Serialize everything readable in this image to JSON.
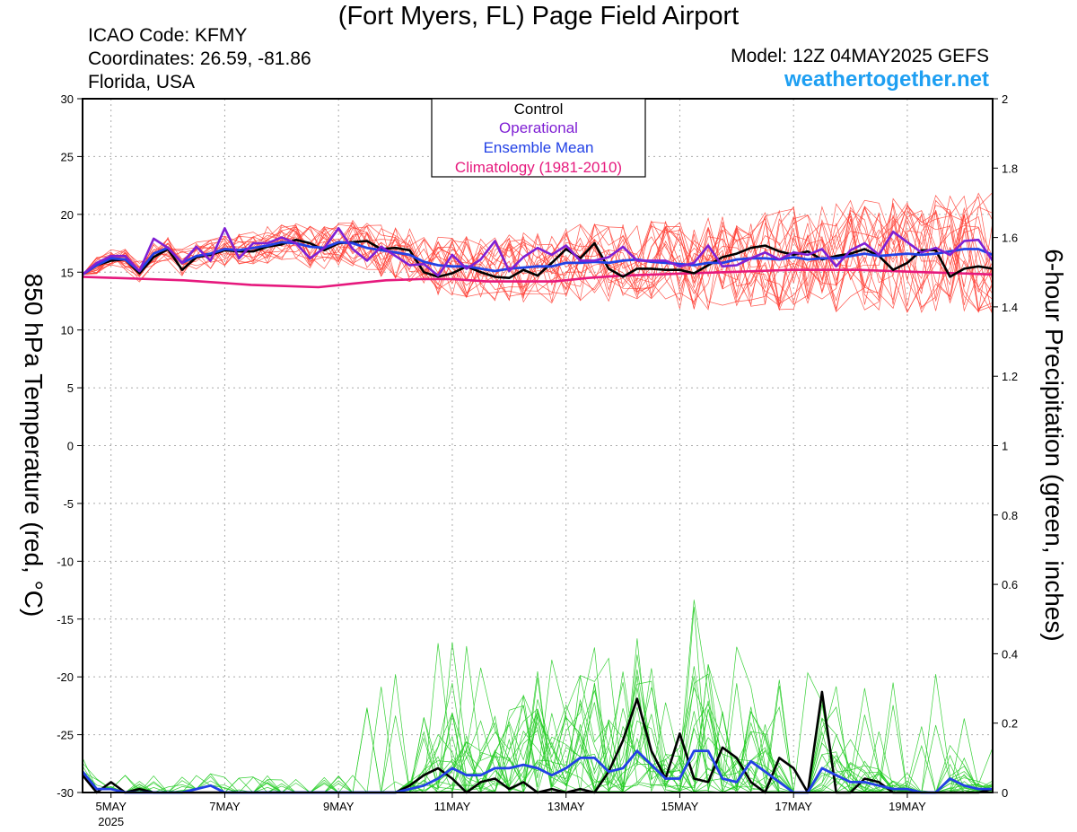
{
  "header": {
    "title": "(Fort Myers, FL) Page Field Airport",
    "icao": "ICAO Code: KFMY",
    "coordinates": "Coordinates: 26.59, -81.86",
    "region": "Florida, USA",
    "model": "Model: 12Z 04MAY2025 GEFS",
    "site": "weathertogether.net"
  },
  "chart_data": {
    "type": "line",
    "y_left_label": "850 hPa Temperature (red, °C)",
    "y_right_label": "6-hour Precipitation (green, inches)",
    "y_left_range": [
      -30,
      30
    ],
    "y_left_ticks": [
      "30",
      "25",
      "20",
      "15",
      "10",
      "5",
      "0",
      "-5",
      "-10",
      "-15",
      "-20",
      "-25",
      "-30"
    ],
    "y_right_range": [
      0,
      2
    ],
    "y_right_ticks": [
      "2",
      "1.8",
      "1.6",
      "1.4",
      "1.2",
      "1",
      "0.8",
      "0.6",
      "0.4",
      "0.2",
      "0"
    ],
    "x_start": "04MAY2025 12Z",
    "x_step_hours": 6,
    "x_ticks": [
      {
        "label": "5MAY",
        "sub": "2025",
        "step": 2
      },
      {
        "label": "7MAY",
        "step": 10
      },
      {
        "label": "9MAY",
        "step": 18
      },
      {
        "label": "11MAY",
        "step": 26
      },
      {
        "label": "13MAY",
        "step": 34
      },
      {
        "label": "15MAY",
        "step": 42
      },
      {
        "label": "17MAY",
        "step": 50
      },
      {
        "label": "19MAY",
        "step": 58
      }
    ],
    "grid": true,
    "legend": {
      "position": "top-center",
      "entries": [
        {
          "name": "Control",
          "color": "#000000"
        },
        {
          "name": "Operational",
          "color": "#7f1fd4"
        },
        {
          "name": "Ensemble Mean",
          "color": "#2241e6"
        },
        {
          "name": "Climatology (1981-2010)",
          "color": "#e6197d"
        }
      ]
    },
    "colors": {
      "member_temp": "#ff3b30",
      "member_precip": "#22cc22",
      "control": "#000000",
      "operational": "#7f1fd4",
      "ensemble_mean": "#2241e6",
      "climatology": "#e6197d"
    },
    "series": [
      {
        "name": "Control",
        "kind": "temperature",
        "values": [
          14.8,
          15.6,
          16.0,
          16.1,
          14.9,
          16.3,
          17.0,
          15.2,
          16.3,
          16.5,
          16.9,
          16.8,
          16.8,
          17.2,
          17.4,
          17.8,
          17.5,
          16.9,
          17.5,
          17.6,
          17.7,
          17.0,
          17.1,
          16.9,
          15.0,
          14.6,
          14.9,
          15.5,
          15.0,
          14.6,
          14.5,
          15.2,
          14.7,
          15.8,
          17.0,
          16.2,
          17.5,
          15.3,
          14.6,
          15.3,
          15.3,
          15.2,
          15.2,
          14.9,
          15.6,
          16.3,
          16.6,
          17.1,
          17.3,
          16.8,
          16.5,
          16.8,
          16.1,
          16.4,
          16.6,
          17.0,
          16.4,
          15.2,
          15.8,
          16.9,
          16.9,
          14.6,
          15.3,
          15.5,
          15.3
        ]
      },
      {
        "name": "Operational",
        "kind": "temperature",
        "values": [
          14.8,
          15.8,
          16.4,
          16.4,
          15.1,
          17.9,
          17.1,
          15.8,
          17.2,
          16.0,
          18.8,
          16.2,
          17.5,
          17.5,
          18.0,
          17.5,
          16.2,
          17.1,
          18.8,
          17.0,
          16.0,
          17.2,
          16.4,
          15.6,
          15.7,
          14.7,
          16.5,
          15.3,
          16.1,
          17.7,
          15.1,
          16.3,
          17.1,
          16.5,
          17.3,
          16.0,
          16.0,
          16.3,
          17.2,
          16.0,
          16.0,
          16.0,
          15.5,
          15.8,
          17.3,
          15.5,
          15.6,
          16.2,
          16.7,
          16.1,
          16.7,
          16.5,
          17.0,
          15.5,
          16.9,
          17.5,
          16.5,
          18.5,
          17.6,
          16.7,
          17.1,
          16.5,
          17.7,
          17.8,
          16.0
        ]
      },
      {
        "name": "Ensemble Mean",
        "kind": "temperature",
        "values": [
          14.8,
          15.6,
          16.2,
          16.1,
          15.1,
          16.6,
          17.1,
          15.8,
          16.4,
          16.6,
          17.0,
          16.9,
          17.1,
          17.3,
          17.6,
          17.5,
          17.2,
          17.1,
          17.6,
          17.5,
          17.1,
          16.9,
          16.7,
          16.5,
          15.9,
          15.6,
          15.5,
          15.5,
          15.3,
          15.1,
          15.3,
          15.4,
          15.5,
          15.5,
          15.8,
          15.8,
          15.9,
          15.8,
          16.0,
          16.1,
          15.9,
          15.8,
          15.7,
          15.6,
          15.8,
          15.8,
          16.1,
          16.2,
          16.2,
          16.1,
          16.3,
          16.1,
          16.2,
          16.2,
          16.4,
          16.6,
          16.4,
          16.5,
          16.6,
          16.5,
          16.6,
          16.8,
          17.0,
          17.0,
          16.5
        ]
      },
      {
        "name": "Climatology (1981-2010)",
        "kind": "temperature",
        "values": [
          14.6,
          14.5,
          14.4,
          14.3,
          14.1,
          13.9,
          13.8,
          13.7,
          14.0,
          14.3,
          14.4,
          14.4,
          14.2,
          14.2,
          14.2,
          14.5,
          14.7,
          14.8,
          14.9,
          15.0,
          15.1,
          15.2,
          15.2,
          15.2,
          15.1,
          15.0,
          14.9,
          14.8
        ]
      },
      {
        "name": "Control",
        "kind": "precipitation",
        "values": [
          0.05,
          0,
          0.03,
          0,
          0.01,
          0,
          0,
          0,
          0,
          0,
          0,
          0,
          0,
          0,
          0,
          0,
          0,
          0,
          0,
          0,
          0,
          0,
          0,
          0.02,
          0.05,
          0.07,
          0.04,
          0,
          0.03,
          0.04,
          0.01,
          0.03,
          0,
          0.01,
          0,
          0.01,
          0,
          0.06,
          0.15,
          0.27,
          0.12,
          0.04,
          0.17,
          0.04,
          0.03,
          0.13,
          0.1,
          0.03,
          0,
          0.1,
          0.07,
          0,
          0.29,
          0,
          0,
          0.04,
          0.03,
          0,
          0,
          0,
          0,
          0,
          0,
          0,
          0.01
        ]
      },
      {
        "name": "Ensemble Mean",
        "kind": "precipitation",
        "values": [
          0.06,
          0.01,
          0.01,
          0,
          0,
          0,
          0,
          0,
          0.01,
          0.02,
          0,
          0,
          0,
          0,
          0,
          0,
          0,
          0,
          0,
          0,
          0,
          0,
          0,
          0.01,
          0.02,
          0.04,
          0.07,
          0.05,
          0.05,
          0.07,
          0.07,
          0.08,
          0.07,
          0.05,
          0.07,
          0.1,
          0.1,
          0.06,
          0.07,
          0.12,
          0.08,
          0.04,
          0.04,
          0.12,
          0.12,
          0.04,
          0.03,
          0.09,
          0.06,
          0.03,
          0,
          0,
          0.07,
          0.05,
          0.03,
          0.03,
          0.02,
          0.01,
          0.01,
          0,
          0,
          0.04,
          0.02,
          0.01,
          0.01
        ]
      }
    ]
  }
}
